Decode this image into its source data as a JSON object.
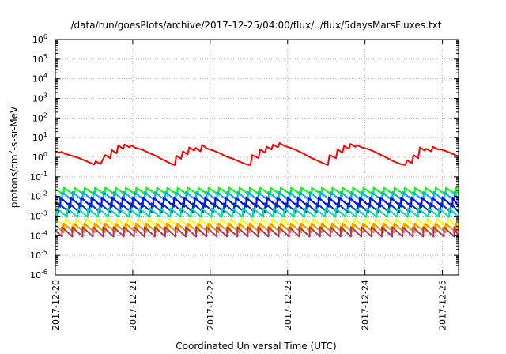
{
  "chart_data": {
    "type": "line",
    "title": "/data/run/goesPlots/archive/2017-12-25/04:00/flux/../flux/5daysMarsFluxes.txt",
    "xlabel": "Coordinated Universal Time (UTC)",
    "ylabel": "protons/cm²-s-sr-MeV",
    "ylabel_parts": {
      "base": "protons/cm",
      "sup": "2",
      "rest": "-s-sr-MeV"
    },
    "yscale": "log",
    "ylim": [
      1e-06,
      1000000.0
    ],
    "xlim": [
      "2017-12-20T00:00",
      "2017-12-25T05:00"
    ],
    "x_ticks": [
      "2017-12-20",
      "2017-12-21",
      "2017-12-22",
      "2017-12-23",
      "2017-12-24",
      "2017-12-25"
    ],
    "y_ticks": [
      {
        "value": 1e-06,
        "base": "10",
        "exp": "-6"
      },
      {
        "value": 1e-05,
        "base": "10",
        "exp": "-5"
      },
      {
        "value": 0.0001,
        "base": "10",
        "exp": "-4"
      },
      {
        "value": 0.001,
        "base": "10",
        "exp": "-3"
      },
      {
        "value": 0.01,
        "base": "10",
        "exp": "-2"
      },
      {
        "value": 0.1,
        "base": "10",
        "exp": "-1"
      },
      {
        "value": 1,
        "base": "10",
        "exp": "0"
      },
      {
        "value": 10,
        "base": "10",
        "exp": "1"
      },
      {
        "value": 100,
        "base": "10",
        "exp": "2"
      },
      {
        "value": 1000,
        "base": "10",
        "exp": "3"
      },
      {
        "value": 10000,
        "base": "10",
        "exp": "4"
      },
      {
        "value": 100000,
        "base": "10",
        "exp": "5"
      },
      {
        "value": 1000000,
        "base": "10",
        "exp": "6"
      }
    ],
    "grid": true,
    "legend": "none",
    "series": [
      {
        "color": "#ff0000",
        "points": [
          [
            "2017-12-20T00:00",
            2.0
          ],
          [
            "2017-12-20T01:00",
            1.7
          ],
          [
            "2017-12-20T02:00",
            1.9
          ],
          [
            "2017-12-20T03:00",
            1.5
          ],
          [
            "2017-12-20T05:00",
            1.2
          ],
          [
            "2017-12-20T07:00",
            0.95
          ],
          [
            "2017-12-20T09:00",
            0.7
          ],
          [
            "2017-12-20T11:00",
            0.5
          ],
          [
            "2017-12-20T12:00",
            0.42
          ],
          [
            "2017-12-20T12:30",
            0.62
          ],
          [
            "2017-12-20T14:00",
            0.45
          ],
          [
            "2017-12-20T15:30",
            1.3
          ],
          [
            "2017-12-20T17:00",
            0.9
          ],
          [
            "2017-12-20T17:30",
            2.3
          ],
          [
            "2017-12-20T19:00",
            1.6
          ],
          [
            "2017-12-20T19:30",
            4.0
          ],
          [
            "2017-12-20T21:00",
            2.7
          ],
          [
            "2017-12-20T21:30",
            4.5
          ],
          [
            "2017-12-20T23:00",
            3.2
          ],
          [
            "2017-12-20T23:30",
            4.0
          ],
          [
            "2017-12-21T01:00",
            3.0
          ],
          [
            "2017-12-21T03:00",
            2.4
          ],
          [
            "2017-12-21T05:00",
            1.7
          ],
          [
            "2017-12-21T07:00",
            1.2
          ],
          [
            "2017-12-21T09:00",
            0.8
          ],
          [
            "2017-12-21T11:00",
            0.55
          ],
          [
            "2017-12-21T12:00",
            0.45
          ],
          [
            "2017-12-21T13:00",
            0.4
          ],
          [
            "2017-12-21T13:30",
            1.2
          ],
          [
            "2017-12-21T15:00",
            0.85
          ],
          [
            "2017-12-21T15:30",
            2.0
          ],
          [
            "2017-12-21T17:00",
            1.4
          ],
          [
            "2017-12-21T17:30",
            3.2
          ],
          [
            "2017-12-21T19:00",
            2.2
          ],
          [
            "2017-12-21T19:30",
            3.0
          ],
          [
            "2017-12-21T21:00",
            2.0
          ],
          [
            "2017-12-21T21:30",
            4.3
          ],
          [
            "2017-12-21T23:00",
            2.8
          ],
          [
            "2017-12-22T01:00",
            2.2
          ],
          [
            "2017-12-22T03:00",
            1.6
          ],
          [
            "2017-12-22T05:00",
            1.1
          ],
          [
            "2017-12-22T07:00",
            0.85
          ],
          [
            "2017-12-22T09:00",
            0.6
          ],
          [
            "2017-12-22T11:00",
            0.45
          ],
          [
            "2017-12-22T12:30",
            0.4
          ],
          [
            "2017-12-22T13:00",
            1.3
          ],
          [
            "2017-12-22T15:00",
            0.9
          ],
          [
            "2017-12-22T15:30",
            2.5
          ],
          [
            "2017-12-22T17:00",
            1.7
          ],
          [
            "2017-12-22T17:30",
            3.5
          ],
          [
            "2017-12-22T19:00",
            2.5
          ],
          [
            "2017-12-22T19:30",
            4.5
          ],
          [
            "2017-12-22T21:00",
            3.2
          ],
          [
            "2017-12-22T21:30",
            5.3
          ],
          [
            "2017-12-22T23:00",
            3.8
          ],
          [
            "2017-12-23T01:00",
            3.0
          ],
          [
            "2017-12-23T03:00",
            2.2
          ],
          [
            "2017-12-23T05:00",
            1.5
          ],
          [
            "2017-12-23T07:00",
            1.0
          ],
          [
            "2017-12-23T09:00",
            0.7
          ],
          [
            "2017-12-23T11:00",
            0.5
          ],
          [
            "2017-12-23T12:30",
            0.4
          ],
          [
            "2017-12-23T13:00",
            1.3
          ],
          [
            "2017-12-23T15:00",
            0.9
          ],
          [
            "2017-12-23T15:30",
            2.5
          ],
          [
            "2017-12-23T17:00",
            1.7
          ],
          [
            "2017-12-23T17:30",
            3.8
          ],
          [
            "2017-12-23T19:00",
            2.7
          ],
          [
            "2017-12-23T19:30",
            4.8
          ],
          [
            "2017-12-23T21:00",
            3.4
          ],
          [
            "2017-12-23T21:30",
            4.2
          ],
          [
            "2017-12-23T23:00",
            3.2
          ],
          [
            "2017-12-24T01:00",
            2.6
          ],
          [
            "2017-12-24T03:00",
            1.9
          ],
          [
            "2017-12-24T05:00",
            1.3
          ],
          [
            "2017-12-24T07:00",
            0.9
          ],
          [
            "2017-12-24T09:00",
            0.6
          ],
          [
            "2017-12-24T11:00",
            0.45
          ],
          [
            "2017-12-24T12:30",
            0.4
          ],
          [
            "2017-12-24T13:00",
            0.7
          ],
          [
            "2017-12-24T14:30",
            0.5
          ],
          [
            "2017-12-24T15:00",
            1.3
          ],
          [
            "2017-12-24T16:30",
            0.9
          ],
          [
            "2017-12-24T17:00",
            3.2
          ],
          [
            "2017-12-24T18:30",
            2.2
          ],
          [
            "2017-12-24T19:00",
            2.7
          ],
          [
            "2017-12-24T20:30",
            2.0
          ],
          [
            "2017-12-24T21:00",
            3.4
          ],
          [
            "2017-12-24T22:30",
            2.6
          ],
          [
            "2017-12-25T00:00",
            2.4
          ],
          [
            "2017-12-25T02:00",
            1.8
          ],
          [
            "2017-12-25T04:00",
            1.3
          ],
          [
            "2017-12-25T05:00",
            1.1
          ]
        ]
      },
      {
        "color": "#00ff00",
        "pattern": {
          "period_hours": 3.2,
          "low": 0.012,
          "high": 0.028
        }
      },
      {
        "color": "#00aaff",
        "pattern": {
          "period_hours": 3.2,
          "low": 0.006,
          "high": 0.017
        }
      },
      {
        "color": "#0000ff",
        "pattern": {
          "period_hours": 3.2,
          "low": 0.003,
          "high": 0.009
        }
      },
      {
        "color": "#0033aa",
        "pattern": {
          "period_hours": 3.2,
          "low": 0.0016,
          "high": 0.0045
        }
      },
      {
        "color": "#00ddbb",
        "pattern": {
          "period_hours": 3.2,
          "low": 0.0009,
          "high": 0.0025
        }
      },
      {
        "color": "#ffff00",
        "pattern": {
          "period_hours": 3.2,
          "low": 0.00025,
          "high": 0.00075
        }
      },
      {
        "color": "#ff8800",
        "pattern": {
          "period_hours": 3.2,
          "low": 0.00015,
          "high": 0.00042
        }
      },
      {
        "color": "#aa3366",
        "pattern": {
          "period_hours": 3.2,
          "low": 9e-05,
          "high": 0.00028
        }
      }
    ]
  }
}
